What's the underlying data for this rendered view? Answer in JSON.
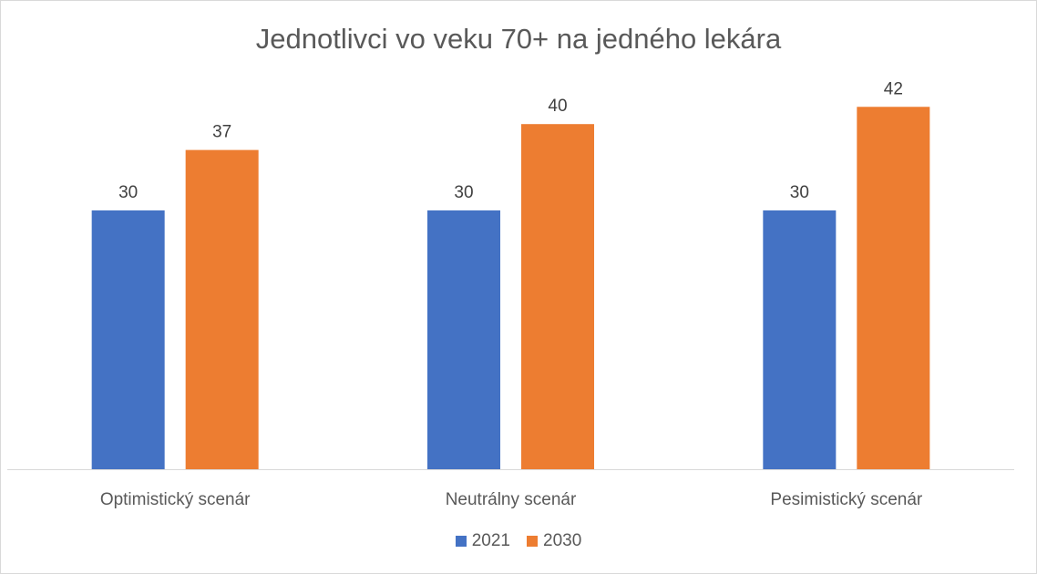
{
  "chart_data": {
    "type": "bar",
    "title": "Jednotlivci vo veku 70+ na jedného lekára",
    "categories": [
      "Optimistický scenár",
      "Neutrálny scenár",
      "Pesimistický scenár"
    ],
    "series": [
      {
        "name": "2021",
        "values": [
          30,
          30,
          30
        ],
        "color": "#4472C4"
      },
      {
        "name": "2030",
        "values": [
          37,
          40,
          42
        ],
        "color": "#ED7D31"
      }
    ],
    "ylim": [
      0,
      45
    ],
    "grid": false,
    "data_labels": true,
    "legend_position": "bottom"
  }
}
